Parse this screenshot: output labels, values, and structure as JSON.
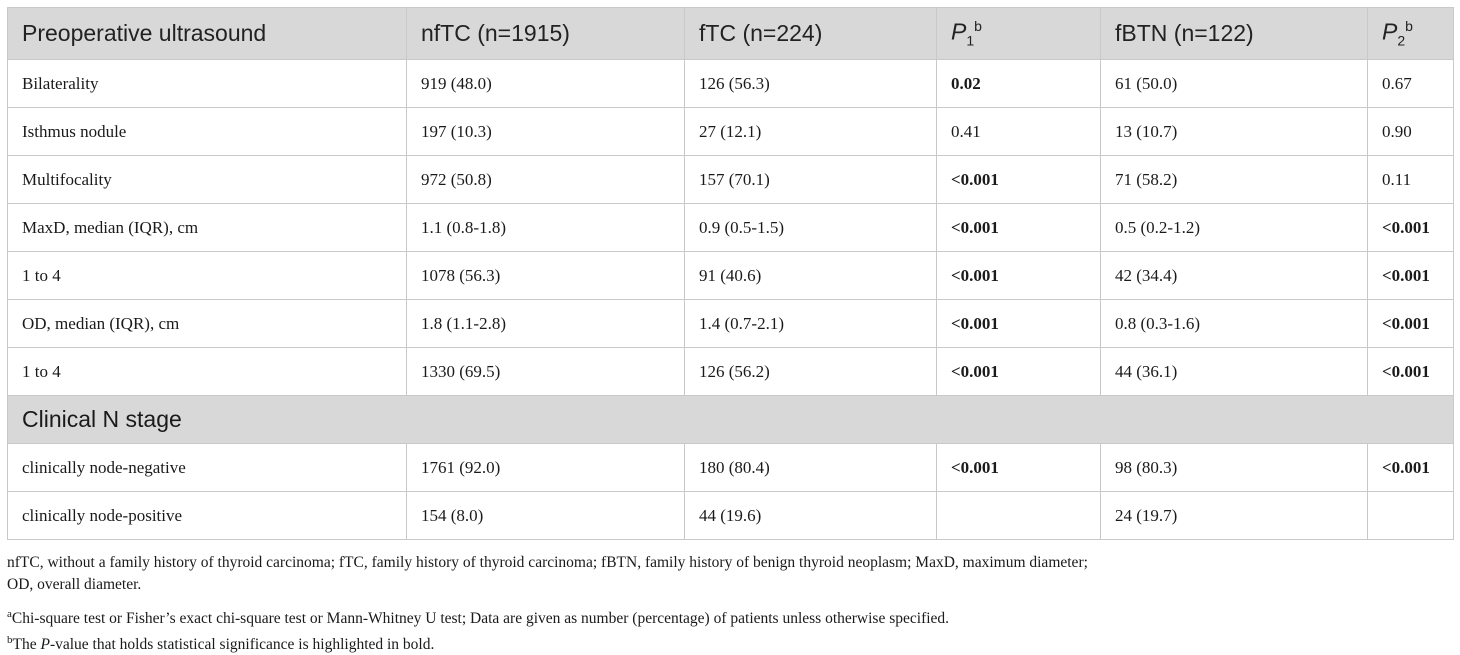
{
  "header": {
    "col0": "Preoperative ultrasound",
    "col1": "nfTC (n=1915)",
    "col2": "fTC (n=224)",
    "col3": {
      "letter": "P",
      "sub": "1",
      "sup": "b"
    },
    "col4": "fBTN (n=122)",
    "col5": {
      "letter": "P",
      "sub": "2",
      "sup": "b"
    }
  },
  "rows": [
    {
      "label": "Bilaterality",
      "nftc": "919 (48.0)",
      "ftc": "126 (56.3)",
      "p1": "0.02",
      "p1_bold": true,
      "fbtn": "61 (50.0)",
      "p2": "0.67",
      "p2_bold": false
    },
    {
      "label": "Isthmus nodule",
      "nftc": "197 (10.3)",
      "ftc": "27 (12.1)",
      "p1": "0.41",
      "p1_bold": false,
      "fbtn": "13 (10.7)",
      "p2": "0.90",
      "p2_bold": false
    },
    {
      "label": "Multifocality",
      "nftc": "972 (50.8)",
      "ftc": "157 (70.1)",
      "p1": "<0.001",
      "p1_bold": true,
      "fbtn": "71 (58.2)",
      "p2": "0.11",
      "p2_bold": false
    },
    {
      "label": "MaxD, median (IQR), cm",
      "nftc": "1.1 (0.8-1.8)",
      "ftc": "0.9 (0.5-1.5)",
      "p1": "<0.001",
      "p1_bold": true,
      "fbtn": "0.5 (0.2-1.2)",
      "p2": "<0.001",
      "p2_bold": true
    },
    {
      "label": "1 to 4",
      "nftc": "1078 (56.3)",
      "ftc": "91 (40.6)",
      "p1": "<0.001",
      "p1_bold": true,
      "fbtn": "42 (34.4)",
      "p2": "<0.001",
      "p2_bold": true
    },
    {
      "label": "OD, median (IQR), cm",
      "nftc": "1.8 (1.1-2.8)",
      "ftc": "1.4 (0.7-2.1)",
      "p1": "<0.001",
      "p1_bold": true,
      "fbtn": "0.8 (0.3-1.6)",
      "p2": "<0.001",
      "p2_bold": true
    },
    {
      "label": "1 to 4",
      "nftc": "1330 (69.5)",
      "ftc": "126 (56.2)",
      "p1": "<0.001",
      "p1_bold": true,
      "fbtn": "44 (36.1)",
      "p2": "<0.001",
      "p2_bold": true
    }
  ],
  "section": "Clinical N stage",
  "rows2": [
    {
      "label": "clinically node-negative",
      "nftc": "1761 (92.0)",
      "ftc": "180 (80.4)",
      "p1": "<0.001",
      "p1_bold": true,
      "fbtn": "98 (80.3)",
      "p2": "<0.001",
      "p2_bold": true
    },
    {
      "label": "clinically node-positive",
      "nftc": "154 (8.0)",
      "ftc": "44 (19.6)",
      "p1": "",
      "p1_bold": false,
      "fbtn": "24 (19.7)",
      "p2": "",
      "p2_bold": false
    }
  ],
  "notes": {
    "abbrev_line1": "nfTC, without a family history of thyroid carcinoma; fTC, family history of thyroid carcinoma; fBTN, family history of benign thyroid neoplasm; MaxD, maximum diameter;",
    "abbrev_line2": "OD, overall diameter.",
    "a_mark": "a",
    "a_text": "Chi-square test or Fisher’s exact chi-square test or Mann-Whitney U test; Data are given as number (percentage) of patients unless otherwise specified.",
    "b_mark": "b",
    "b_pre": "The ",
    "b_ital": "P",
    "b_post": "-value that holds statistical significance is highlighted in bold."
  }
}
